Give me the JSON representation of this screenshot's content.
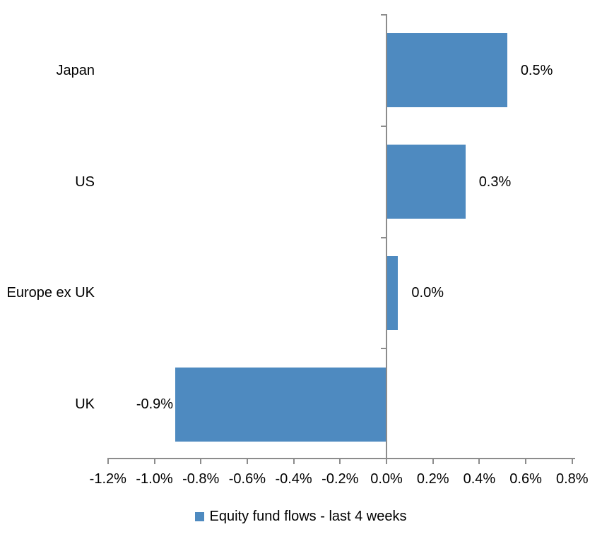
{
  "chart_data": {
    "type": "bar",
    "orientation": "horizontal",
    "title": "",
    "xlabel": "",
    "ylabel": "",
    "categories": [
      "Japan",
      "US",
      "Europe ex UK",
      "UK"
    ],
    "values": [
      0.5,
      0.3,
      0.0,
      -0.9
    ],
    "data_labels": [
      "0.5%",
      "0.3%",
      "0.0%",
      "-0.9%"
    ],
    "render_values": [
      0.52,
      0.34,
      0.05,
      -0.91
    ],
    "series": [
      {
        "name": "Equity fund flows - last 4 weeks",
        "values": [
          0.5,
          0.3,
          0.0,
          -0.9
        ]
      }
    ],
    "unit": "%",
    "xlim": [
      -1.2,
      0.8
    ],
    "x_tick_step": 0.2,
    "x_ticks": [
      -1.2,
      -1.0,
      -0.8,
      -0.6,
      -0.4,
      -0.2,
      0.0,
      0.2,
      0.4,
      0.6,
      0.8
    ],
    "x_tick_labels": [
      "-1.2%",
      "-1.0%",
      "-0.8%",
      "-0.6%",
      "-0.4%",
      "-0.2%",
      "0.0%",
      "0.2%",
      "0.4%",
      "0.6%",
      "0.8%"
    ],
    "grid": false,
    "legend_position": "bottom",
    "bar_color": "#4E8AC0",
    "axis_color": "#8C8C8C",
    "text_color": "#000000"
  },
  "legend": {
    "label": "Equity fund flows - last 4 weeks",
    "swatch_color": "#4E8AC0"
  }
}
